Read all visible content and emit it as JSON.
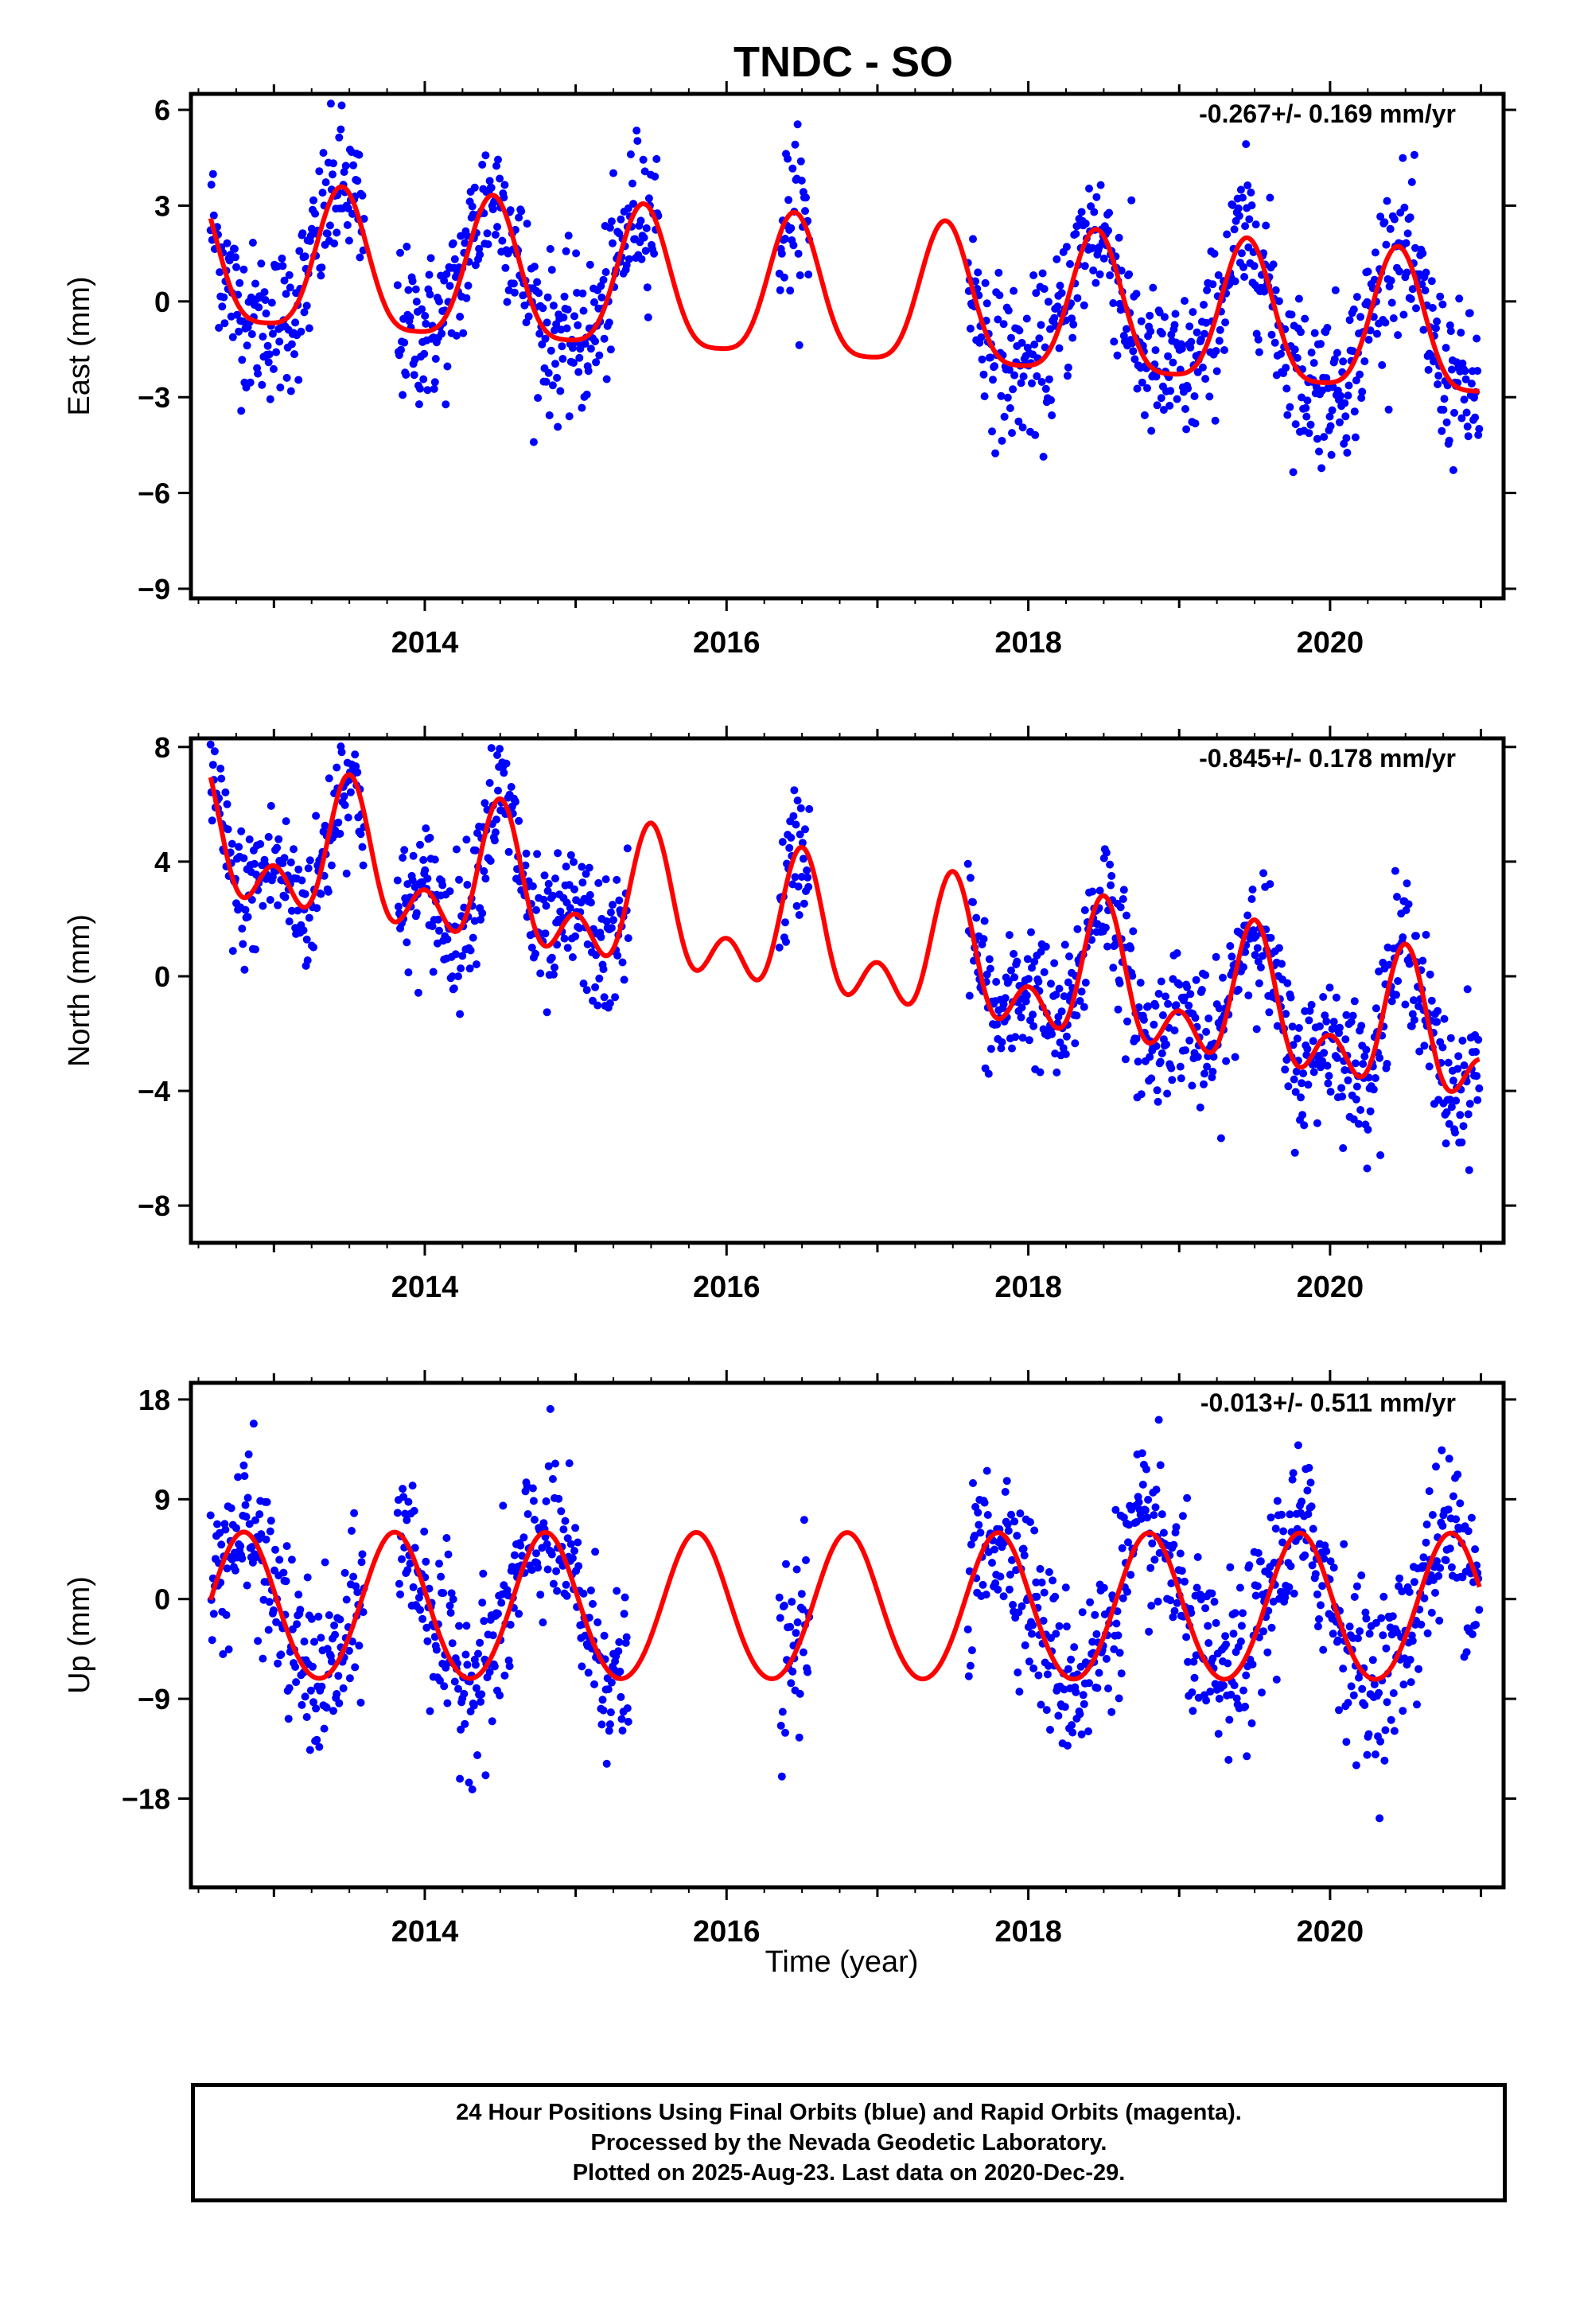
{
  "title": "TNDC - SO",
  "xlabel": "Time (year)",
  "footer": {
    "line1": "24 Hour Positions Using Final Orbits (blue) and Rapid Orbits (magenta).",
    "line2": "Processed by the Nevada Geodetic Laboratory.",
    "line3": "Plotted on 2025-Aug-23. Last data on 2020-Dec-29."
  },
  "colors": {
    "observations": "#0000ff",
    "model": "#ff0000",
    "frame": "#000000"
  },
  "chart_data": [
    {
      "type": "scatter",
      "panel": "east",
      "ylabel": "East (mm)",
      "rate": "-0.267+/- 0.169 mm/yr",
      "xlim": [
        2012.45,
        2021.15
      ],
      "ylim": [
        -9.3,
        6.5
      ],
      "yticks": [
        6,
        3,
        0,
        -3,
        -6,
        -9
      ],
      "ytick_labels": [
        "6",
        "3",
        "0",
        "−3",
        "−6",
        "−9"
      ],
      "xticks": [
        2014,
        2016,
        2018,
        2020
      ],
      "xtick_labels": [
        "2014",
        "2016",
        "2018",
        "2020"
      ],
      "x_minor_ticks": [
        2013,
        2015,
        2017,
        2019,
        2021
      ],
      "model": {
        "trend": -0.267,
        "offset": 0.0,
        "t0": 2016.8,
        "annual_amp": 2.2,
        "annual_peak": 2016.45,
        "semiannual_amp": 0.5,
        "semiannual_peak": 2016.45
      },
      "segments": [
        [
          2012.58,
          2013.6
        ],
        [
          2013.82,
          2015.55
        ],
        [
          2016.35,
          2016.55
        ],
        [
          2017.6,
          2020.99
        ]
      ],
      "scatter_sigma": 1.2,
      "series": [
        {
          "name": "24 Hour Positions Using Final Orbits (blue)",
          "color": "#0000ff"
        }
      ],
      "model_series": {
        "color": "#ff0000"
      }
    },
    {
      "type": "scatter",
      "panel": "north",
      "ylabel": "North (mm)",
      "rate": "-0.845+/- 0.178 mm/yr",
      "xlim": [
        2012.45,
        2021.15
      ],
      "ylim": [
        -9.3,
        8.3
      ],
      "yticks": [
        8,
        4,
        0,
        -4,
        -8
      ],
      "ytick_labels": [
        "8",
        "4",
        "0",
        "−4",
        "−8"
      ],
      "xticks": [
        2014,
        2016,
        2018,
        2020
      ],
      "xtick_labels": [
        "2014",
        "2016",
        "2018",
        "2020"
      ],
      "x_minor_ticks": [
        2013,
        2015,
        2017,
        2019,
        2021
      ],
      "model": {
        "trend": -0.845,
        "offset": 1.05,
        "t0": 2016.8,
        "annual_amp": 1.8,
        "annual_peak": 2016.5,
        "semiannual_amp": 1.4,
        "semiannual_peak": 2016.0
      },
      "segments": [
        [
          2012.58,
          2013.6
        ],
        [
          2013.82,
          2015.35
        ],
        [
          2016.35,
          2016.55
        ],
        [
          2017.6,
          2020.99
        ]
      ],
      "scatter_sigma": 1.2,
      "series": [
        {
          "name": "24 Hour Positions Using Final Orbits (blue)",
          "color": "#0000ff"
        }
      ],
      "model_series": {
        "color": "#ff0000"
      }
    },
    {
      "type": "scatter",
      "panel": "up",
      "ylabel": "Up (mm)",
      "rate": "-0.013+/- 0.511 mm/yr",
      "xlim": [
        2012.45,
        2021.15
      ],
      "ylim": [
        -26,
        19.5
      ],
      "yticks": [
        18,
        9,
        0,
        -9,
        -18
      ],
      "ytick_labels": [
        "18",
        "9",
        "0",
        "−9",
        "−18"
      ],
      "xticks": [
        2014,
        2016,
        2018,
        2020
      ],
      "xtick_labels": [
        "2014",
        "2016",
        "2018",
        "2020"
      ],
      "x_minor_ticks": [
        2013,
        2015,
        2017,
        2019,
        2021
      ],
      "model": {
        "trend": -0.013,
        "offset": -1.0,
        "t0": 2016.8,
        "annual_amp": 6.6,
        "annual_peak": 2016.8,
        "semiannual_amp": 0.4,
        "semiannual_peak": 2016.8
      },
      "segments": [
        [
          2012.58,
          2013.6
        ],
        [
          2013.82,
          2015.35
        ],
        [
          2016.35,
          2016.55
        ],
        [
          2017.6,
          2020.99
        ]
      ],
      "scatter_sigma": 3.8,
      "series": [
        {
          "name": "24 Hour Positions Using Final Orbits (blue)",
          "color": "#0000ff"
        }
      ],
      "model_series": {
        "color": "#ff0000"
      }
    }
  ]
}
